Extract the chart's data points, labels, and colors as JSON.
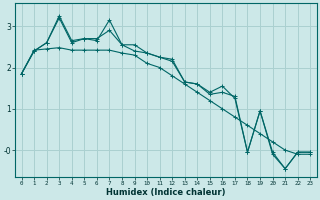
{
  "xlabel": "Humidex (Indice chaleur)",
  "ylabel": "",
  "background_color": "#cce8e8",
  "grid_color": "#aad0d0",
  "line_color": "#006666",
  "xlim": [
    -0.5,
    23.5
  ],
  "ylim": [
    -0.65,
    3.55
  ],
  "yticks": [
    0,
    1,
    2,
    3
  ],
  "ytick_labels": [
    "-0",
    "1",
    "2",
    "3"
  ],
  "xtick_labels": [
    "0",
    "1",
    "2",
    "3",
    "4",
    "5",
    "6",
    "7",
    "8",
    "9",
    "10",
    "11",
    "12",
    "13",
    "14",
    "15",
    "16",
    "17",
    "18",
    "19",
    "20",
    "21",
    "22",
    "23"
  ],
  "series": [
    [
      1.85,
      2.4,
      2.6,
      3.2,
      2.6,
      2.7,
      2.65,
      3.15,
      2.55,
      2.4,
      2.35,
      2.25,
      2.15,
      1.65,
      1.6,
      1.35,
      1.4,
      1.3,
      -0.05,
      0.95,
      -0.1,
      -0.45,
      -0.05,
      -0.05
    ],
    [
      1.85,
      2.4,
      2.6,
      3.25,
      2.65,
      2.7,
      2.7,
      2.9,
      2.55,
      2.55,
      2.35,
      2.25,
      2.2,
      1.65,
      1.6,
      1.4,
      1.55,
      1.25,
      -0.05,
      0.95,
      -0.05,
      -0.45,
      -0.05,
      -0.05
    ],
    [
      1.85,
      2.42,
      2.45,
      2.48,
      2.42,
      2.42,
      2.42,
      2.42,
      2.35,
      2.3,
      2.1,
      2.0,
      1.8,
      1.6,
      1.4,
      1.2,
      1.0,
      0.8,
      0.6,
      0.4,
      0.2,
      0.0,
      -0.1,
      -0.1
    ]
  ]
}
